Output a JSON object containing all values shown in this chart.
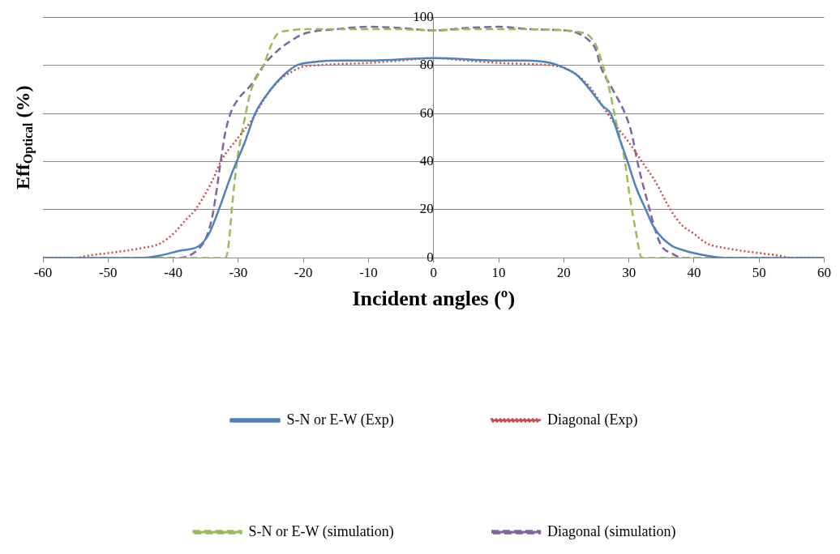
{
  "chart_data": {
    "type": "line",
    "xlabel": "Incident angles (º)",
    "ylabel": "Eff$_{Optical}$ (%)",
    "xlim": [
      -60,
      60
    ],
    "xticks": [
      -60,
      -50,
      -40,
      -30,
      -20,
      -10,
      0,
      10,
      20,
      30,
      40,
      50,
      60
    ],
    "ylim": [
      0,
      100
    ],
    "yticks": [
      0,
      20,
      40,
      60,
      80,
      100
    ],
    "grid": "y",
    "legend": "bottom",
    "marker": "none",
    "series": [
      {
        "name": "S-N or E-W (Exp)",
        "color": "#4f81bd",
        "line_style": "solid",
        "x": [
          -60,
          -45,
          -42,
          -39,
          -36,
          -34.5,
          -33,
          -31,
          -29,
          -27.4,
          -25,
          -23,
          -21,
          -18,
          -14,
          -10,
          0,
          10,
          14,
          18,
          20,
          22,
          24,
          26,
          27.2,
          28.5,
          29.8,
          31,
          32.6,
          34,
          36.6,
          38,
          40,
          43,
          45,
          60
        ],
        "values": [
          0,
          0,
          1,
          3,
          5,
          10,
          20,
          35,
          48,
          60,
          70,
          76,
          80,
          81.5,
          82,
          82,
          83,
          82,
          82,
          81,
          79,
          76,
          70,
          63,
          60,
          50,
          40,
          30,
          20,
          12,
          5,
          3.5,
          2,
          0.5,
          0,
          0
        ]
      },
      {
        "name": "Diagonal (Exp)",
        "color": "#c0504d",
        "line_style": "dotted",
        "x": [
          -60,
          -55,
          -53,
          -50,
          -45,
          -42,
          -40,
          -38,
          -36.6,
          -34,
          -32.7,
          -30,
          -28,
          -26,
          -24,
          -22,
          -20,
          -18,
          -15,
          -10,
          -5,
          0,
          5,
          10,
          15,
          18,
          20,
          22,
          24,
          26,
          28,
          30,
          32,
          34,
          36.4,
          38,
          40,
          42,
          45,
          50,
          53,
          55,
          60
        ],
        "values": [
          0,
          0,
          1,
          2,
          4,
          6,
          10,
          16,
          20,
          32,
          40,
          50,
          57,
          66,
          73,
          77,
          79.5,
          80,
          80.5,
          81,
          82,
          83,
          82,
          81,
          80.5,
          80,
          79,
          76,
          71,
          63,
          55,
          48,
          40,
          32,
          20,
          14,
          10,
          6,
          4,
          2,
          1,
          0,
          0
        ]
      },
      {
        "name": "S-N or E-W (simulation)",
        "color": "#9bbb59",
        "line_style": "dashed",
        "x": [
          -60,
          -32,
          -31.5,
          -31,
          -30.2,
          -29,
          -28,
          -26.1,
          -25,
          -24,
          -22,
          -20,
          -10,
          -5,
          0,
          5,
          10,
          15,
          20,
          22,
          24,
          25,
          26,
          27,
          28,
          29.4,
          30,
          31,
          32,
          60
        ],
        "values": [
          0,
          0,
          5,
          20,
          40,
          58,
          70,
          80,
          88,
          93,
          94.5,
          95,
          95,
          95,
          94.5,
          95,
          95,
          95,
          94.5,
          94,
          92,
          88,
          80,
          70,
          57,
          40,
          28,
          12,
          0,
          0
        ]
      },
      {
        "name": "Diagonal (simulation)",
        "color": "#8064a2",
        "line_style": "dashed",
        "x": [
          -60,
          -39,
          -37.5,
          -36,
          -35,
          -34,
          -33.5,
          -32.7,
          -32,
          -31.2,
          -30,
          -28,
          -26.1,
          -24,
          -22,
          -20,
          -15,
          -10,
          -5,
          0,
          5,
          10,
          15,
          20,
          22,
          24,
          25,
          25.6,
          27.5,
          29.4,
          30.4,
          31.3,
          32.2,
          33.2,
          34,
          35,
          36.5,
          38.3,
          60
        ],
        "values": [
          0,
          0,
          1,
          4,
          8,
          17,
          25,
          40,
          52,
          60,
          66,
          72,
          80,
          86,
          90,
          93,
          95,
          96,
          95.5,
          94.5,
          95.5,
          96,
          95,
          94.5,
          93.5,
          90,
          86,
          80,
          70,
          60,
          52,
          40,
          30,
          20,
          12,
          5,
          2,
          0,
          0
        ]
      }
    ]
  }
}
